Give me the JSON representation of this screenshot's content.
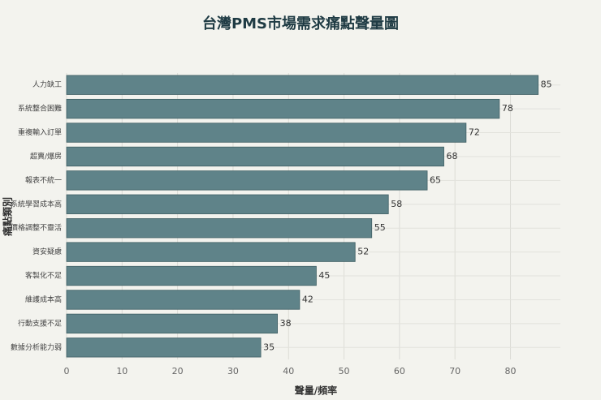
{
  "chart_data": {
    "type": "hbar",
    "title": "台灣PMS市場需求痛點聲量圖",
    "x_label": "聲量/頻率",
    "y_label": "痛點類別",
    "categories": [
      "人力缺工",
      "系統整合困難",
      "重複輸入訂單",
      "超賣/爆房",
      "報表不統一",
      "系統學習成本高",
      "價格調整不靈活",
      "資安疑慮",
      "客製化不足",
      "維護成本高",
      "行動支援不足",
      "數據分析能力弱"
    ],
    "values": [
      85,
      78,
      72,
      68,
      65,
      58,
      55,
      52,
      45,
      42,
      38,
      35
    ],
    "color": "#5f8389",
    "xlim": [
      0,
      89
    ],
    "xticks": [
      0,
      10,
      20,
      30,
      40,
      50,
      60,
      70,
      80
    ],
    "grid": true
  }
}
